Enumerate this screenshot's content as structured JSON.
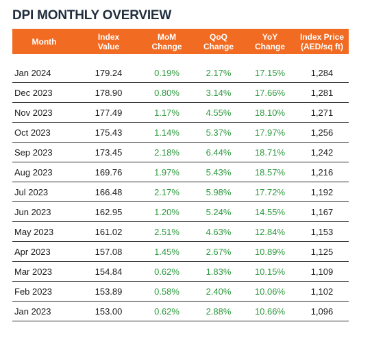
{
  "title": "DPI MONTHLY OVERVIEW",
  "headers": {
    "month": "Month",
    "index": "Index\nValue",
    "mom": "MoM\nChange",
    "qoq": "QoQ\nChange",
    "yoy": "YoY\nChange",
    "price": "Index Price\n(AED/sq ft)"
  },
  "colors": {
    "header_bg": "#f26b22",
    "change_text": "#2e9a3f",
    "title_text": "#1f2d3d"
  },
  "rows": [
    {
      "month": "Jan 2024",
      "index": "179.24",
      "mom": "0.19%",
      "qoq": "2.17%",
      "yoy": "17.15%",
      "price": "1,284"
    },
    {
      "month": "Dec 2023",
      "index": "178.90",
      "mom": "0.80%",
      "qoq": "3.14%",
      "yoy": "17.66%",
      "price": "1,281"
    },
    {
      "month": "Nov 2023",
      "index": "177.49",
      "mom": "1.17%",
      "qoq": "4.55%",
      "yoy": "18.10%",
      "price": "1,271"
    },
    {
      "month": "Oct 2023",
      "index": "175.43",
      "mom": "1.14%",
      "qoq": "5.37%",
      "yoy": "17.97%",
      "price": "1,256"
    },
    {
      "month": "Sep 2023",
      "index": "173.45",
      "mom": "2.18%",
      "qoq": "6.44%",
      "yoy": "18.71%",
      "price": "1,242"
    },
    {
      "month": "Aug 2023",
      "index": "169.76",
      "mom": "1.97%",
      "qoq": "5.43%",
      "yoy": "18.57%",
      "price": "1,216"
    },
    {
      "month": "Jul 2023",
      "index": "166.48",
      "mom": "2.17%",
      "qoq": "5.98%",
      "yoy": "17.72%",
      "price": "1,192"
    },
    {
      "month": "Jun 2023",
      "index": "162.95",
      "mom": "1.20%",
      "qoq": "5.24%",
      "yoy": "14.55%",
      "price": "1,167"
    },
    {
      "month": "May 2023",
      "index": "161.02",
      "mom": "2.51%",
      "qoq": "4.63%",
      "yoy": "12.84%",
      "price": "1,153"
    },
    {
      "month": "Apr 2023",
      "index": "157.08",
      "mom": "1.45%",
      "qoq": "2.67%",
      "yoy": "10.89%",
      "price": "1,125"
    },
    {
      "month": "Mar 2023",
      "index": "154.84",
      "mom": "0.62%",
      "qoq": "1.83%",
      "yoy": "10.15%",
      "price": "1,109"
    },
    {
      "month": "Feb 2023",
      "index": "153.89",
      "mom": "0.58%",
      "qoq": "2.40%",
      "yoy": "10.06%",
      "price": "1,102"
    },
    {
      "month": "Jan 2023",
      "index": "153.00",
      "mom": "0.62%",
      "qoq": "2.88%",
      "yoy": "10.66%",
      "price": "1,096"
    }
  ]
}
